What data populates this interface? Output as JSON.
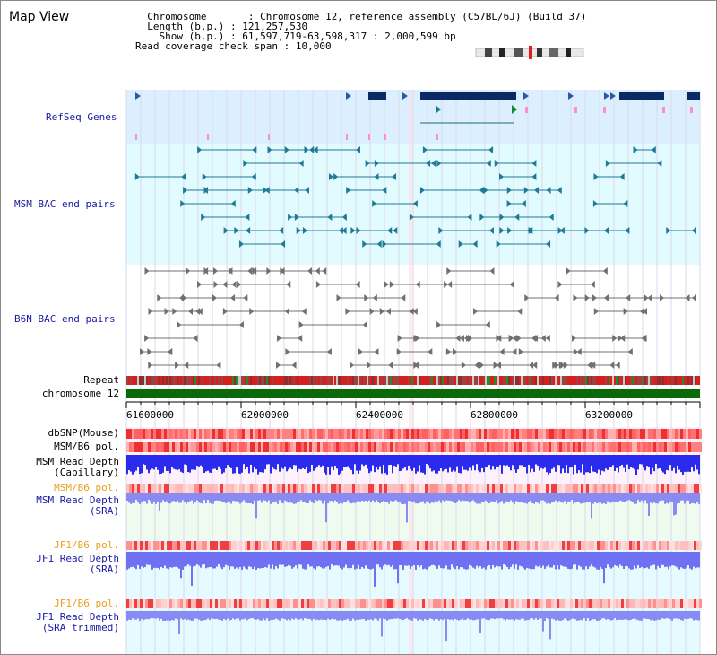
{
  "window": {
    "title": "Map View"
  },
  "info": {
    "chromosome_label": "Chromosome",
    "chromosome_value": "Chromosome 12, reference assembly (C57BL/6J) (Build 37)",
    "length_label": "Length (b.p.)",
    "length_value": "121,257,530",
    "show_label": "Show (b.p.)",
    "show_value": "61,597,719-63,598,317 : 2,000,599 bp",
    "coverage_label": "Read coverage check span",
    "coverage_value": "10,000"
  },
  "tracks": {
    "refseq": "RefSeq Genes",
    "msm_bac": "MSM BAC end pairs",
    "b6n_bac": "B6N BAC end pairs",
    "repeat": "Repeat",
    "chromosome": "chromosome 12",
    "dbsnp": "dbSNP(Mouse)",
    "msm_b6_pol_1": "MSM/B6 pol.",
    "msm_read_depth_cap_1": "MSM Read Depth",
    "msm_read_depth_cap_2": "(Capillary)",
    "msm_b6_pol_2": "MSM/B6 pol.",
    "msm_read_depth_sra_1": "MSM Read Depth",
    "msm_read_depth_sra_2": "(SRA)",
    "jf1_b6_pol_1": "JF1/B6 pol.",
    "jf1_read_depth_1": "JF1 Read Depth",
    "jf1_read_depth_2": "(SRA)",
    "jf1_b6_pol_2": "JF1/B6 pol.",
    "jf1_read_depth_trim_1": "JF1 Read Depth",
    "jf1_read_depth_trim_2": "(SRA trimmed)"
  },
  "axis": {
    "ticks": [
      "61600000",
      "62000000",
      "62400000",
      "62800000",
      "63200000"
    ]
  },
  "colors": {
    "refseq_bg": "#dcefff",
    "msm_bg": "#e2fbff",
    "gene": "#0a2a66",
    "msm_feature": "#1e7a96",
    "b6n_feature": "#707070",
    "chrom": "#0a6a0a",
    "depth_blue": "#2b2bee",
    "depth_light": "#8a8af5"
  }
}
